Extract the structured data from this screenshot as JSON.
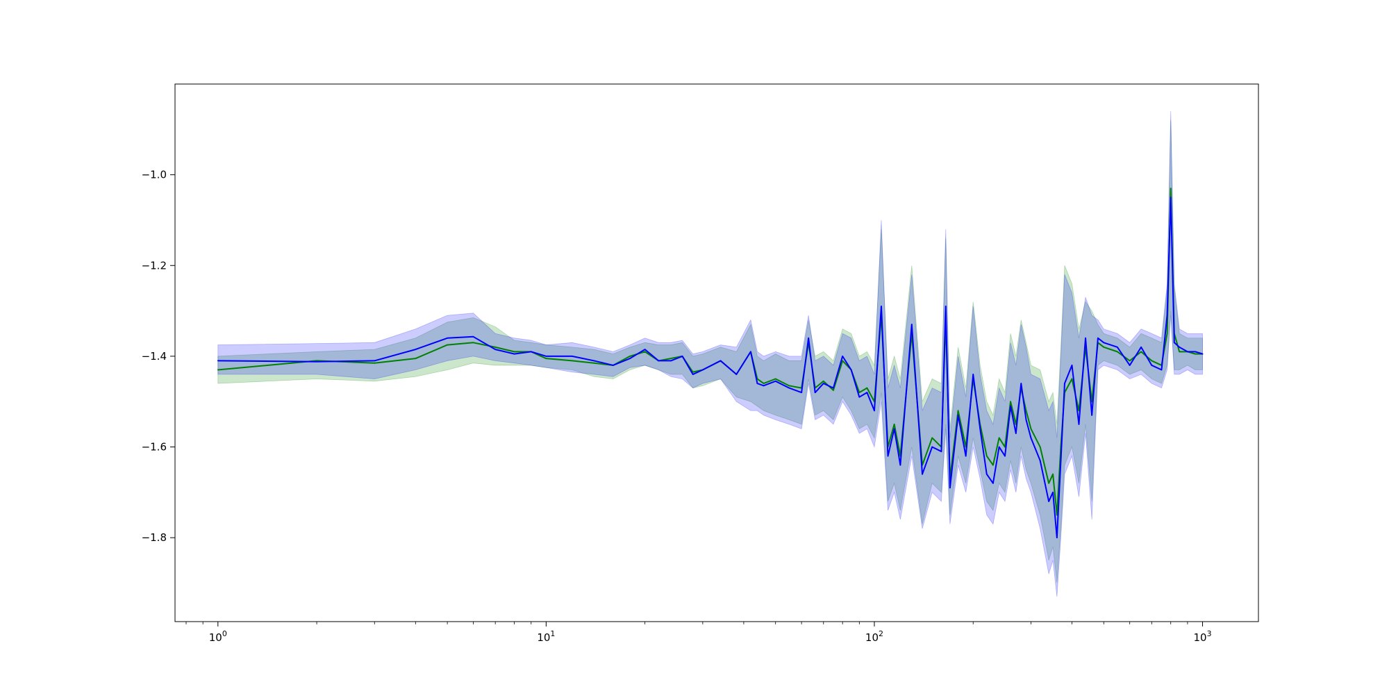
{
  "chart_data": {
    "type": "line",
    "title": "",
    "xlabel": "",
    "ylabel": "",
    "x_scale": "log",
    "xlim": [
      0.74,
      1480
    ],
    "ylim": [
      -1.985,
      -0.8
    ],
    "grid": false,
    "legend": "none",
    "x_ticks": [
      {
        "value": 1,
        "base": "10",
        "exp": "0"
      },
      {
        "value": 10,
        "base": "10",
        "exp": "1"
      },
      {
        "value": 100,
        "base": "10",
        "exp": "2"
      },
      {
        "value": 1000,
        "base": "10",
        "exp": "3"
      }
    ],
    "y_ticks": [
      {
        "value": -1.0,
        "label": "−1.0"
      },
      {
        "value": -1.2,
        "label": "−1.2"
      },
      {
        "value": -1.4,
        "label": "−1.4"
      },
      {
        "value": -1.6,
        "label": "−1.6"
      },
      {
        "value": -1.8,
        "label": "−1.8"
      }
    ],
    "series": [
      {
        "color": "#008000",
        "band_color": "#008000",
        "x": [
          1,
          2,
          3,
          4,
          5,
          6,
          7,
          8,
          9,
          10,
          12,
          14,
          16,
          18,
          20,
          22,
          24,
          26,
          28,
          30,
          34,
          38,
          42,
          44,
          46,
          50,
          55,
          60,
          63,
          66,
          70,
          75,
          80,
          85,
          90,
          95,
          100,
          105,
          110,
          115,
          120,
          130,
          140,
          150,
          160,
          165,
          170,
          180,
          190,
          200,
          210,
          220,
          230,
          240,
          250,
          260,
          270,
          280,
          290,
          300,
          320,
          340,
          350,
          360,
          370,
          380,
          400,
          420,
          440,
          460,
          480,
          500,
          550,
          600,
          650,
          700,
          750,
          780,
          800,
          820,
          850,
          900,
          950,
          1000
        ],
        "values": [
          -1.43,
          -1.41,
          -1.415,
          -1.405,
          -1.375,
          -1.37,
          -1.38,
          -1.39,
          -1.39,
          -1.405,
          -1.41,
          -1.415,
          -1.42,
          -1.4,
          -1.39,
          -1.41,
          -1.405,
          -1.4,
          -1.435,
          -1.43,
          -1.41,
          -1.44,
          -1.39,
          -1.45,
          -1.46,
          -1.45,
          -1.465,
          -1.47,
          -1.37,
          -1.47,
          -1.455,
          -1.475,
          -1.41,
          -1.43,
          -1.48,
          -1.47,
          -1.5,
          -1.31,
          -1.6,
          -1.55,
          -1.62,
          -1.35,
          -1.64,
          -1.58,
          -1.6,
          -1.32,
          -1.67,
          -1.52,
          -1.6,
          -1.45,
          -1.55,
          -1.62,
          -1.64,
          -1.58,
          -1.6,
          -1.5,
          -1.55,
          -1.47,
          -1.52,
          -1.56,
          -1.6,
          -1.68,
          -1.66,
          -1.75,
          -1.6,
          -1.48,
          -1.45,
          -1.52,
          -1.38,
          -1.5,
          -1.37,
          -1.38,
          -1.39,
          -1.41,
          -1.39,
          -1.41,
          -1.42,
          -1.35,
          -1.03,
          -1.35,
          -1.39,
          -1.39,
          -1.395,
          -1.395
        ],
        "lower": [
          -1.46,
          -1.45,
          -1.455,
          -1.445,
          -1.43,
          -1.415,
          -1.42,
          -1.42,
          -1.42,
          -1.425,
          -1.43,
          -1.445,
          -1.45,
          -1.43,
          -1.42,
          -1.43,
          -1.44,
          -1.44,
          -1.47,
          -1.465,
          -1.45,
          -1.49,
          -1.5,
          -1.51,
          -1.52,
          -1.53,
          -1.54,
          -1.55,
          -1.45,
          -1.53,
          -1.52,
          -1.54,
          -1.49,
          -1.52,
          -1.56,
          -1.55,
          -1.58,
          -1.48,
          -1.72,
          -1.68,
          -1.74,
          -1.6,
          -1.77,
          -1.68,
          -1.7,
          -1.55,
          -1.75,
          -1.62,
          -1.68,
          -1.58,
          -1.65,
          -1.72,
          -1.74,
          -1.68,
          -1.7,
          -1.63,
          -1.68,
          -1.6,
          -1.65,
          -1.68,
          -1.75,
          -1.85,
          -1.82,
          -1.9,
          -1.78,
          -1.64,
          -1.6,
          -1.68,
          -1.55,
          -1.72,
          -1.42,
          -1.41,
          -1.42,
          -1.44,
          -1.43,
          -1.45,
          -1.46,
          -1.42,
          -1.3,
          -1.43,
          -1.43,
          -1.42,
          -1.43,
          -1.43
        ],
        "upper": [
          -1.4,
          -1.39,
          -1.385,
          -1.36,
          -1.325,
          -1.315,
          -1.335,
          -1.365,
          -1.37,
          -1.375,
          -1.38,
          -1.385,
          -1.395,
          -1.38,
          -1.37,
          -1.375,
          -1.375,
          -1.37,
          -1.4,
          -1.395,
          -1.38,
          -1.39,
          -1.33,
          -1.4,
          -1.41,
          -1.395,
          -1.41,
          -1.41,
          -1.32,
          -1.4,
          -1.39,
          -1.41,
          -1.34,
          -1.35,
          -1.4,
          -1.39,
          -1.42,
          -1.12,
          -1.45,
          -1.4,
          -1.45,
          -1.2,
          -1.5,
          -1.45,
          -1.46,
          -1.14,
          -1.56,
          -1.38,
          -1.47,
          -1.28,
          -1.42,
          -1.5,
          -1.53,
          -1.45,
          -1.48,
          -1.35,
          -1.4,
          -1.32,
          -1.37,
          -1.42,
          -1.43,
          -1.5,
          -1.48,
          -1.55,
          -1.38,
          -1.2,
          -1.24,
          -1.34,
          -1.28,
          -1.3,
          -1.33,
          -1.35,
          -1.36,
          -1.38,
          -1.35,
          -1.36,
          -1.37,
          -1.25,
          -0.88,
          -1.25,
          -1.35,
          -1.36,
          -1.36,
          -1.36
        ]
      },
      {
        "color": "#0000ff",
        "band_color": "#0000ff",
        "x": [
          1,
          2,
          3,
          4,
          5,
          6,
          7,
          8,
          9,
          10,
          12,
          14,
          16,
          18,
          20,
          22,
          24,
          26,
          28,
          30,
          34,
          38,
          42,
          44,
          46,
          50,
          55,
          60,
          63,
          66,
          70,
          75,
          80,
          85,
          90,
          95,
          100,
          105,
          110,
          115,
          120,
          130,
          140,
          150,
          160,
          165,
          170,
          180,
          190,
          200,
          210,
          220,
          230,
          240,
          250,
          260,
          270,
          280,
          290,
          300,
          320,
          340,
          350,
          360,
          370,
          380,
          400,
          420,
          440,
          460,
          480,
          500,
          550,
          600,
          650,
          700,
          750,
          780,
          800,
          820,
          850,
          900,
          950,
          1000
        ],
        "values": [
          -1.41,
          -1.412,
          -1.41,
          -1.385,
          -1.36,
          -1.357,
          -1.385,
          -1.395,
          -1.39,
          -1.4,
          -1.4,
          -1.41,
          -1.42,
          -1.405,
          -1.385,
          -1.41,
          -1.41,
          -1.4,
          -1.44,
          -1.43,
          -1.41,
          -1.44,
          -1.39,
          -1.46,
          -1.465,
          -1.455,
          -1.47,
          -1.48,
          -1.36,
          -1.48,
          -1.46,
          -1.47,
          -1.4,
          -1.43,
          -1.49,
          -1.48,
          -1.52,
          -1.29,
          -1.62,
          -1.56,
          -1.64,
          -1.33,
          -1.66,
          -1.6,
          -1.61,
          -1.29,
          -1.69,
          -1.53,
          -1.62,
          -1.44,
          -1.56,
          -1.66,
          -1.68,
          -1.6,
          -1.62,
          -1.51,
          -1.57,
          -1.46,
          -1.54,
          -1.58,
          -1.63,
          -1.72,
          -1.7,
          -1.8,
          -1.63,
          -1.46,
          -1.42,
          -1.55,
          -1.36,
          -1.53,
          -1.36,
          -1.37,
          -1.38,
          -1.42,
          -1.38,
          -1.42,
          -1.43,
          -1.31,
          -1.05,
          -1.37,
          -1.38,
          -1.39,
          -1.39,
          -1.395
        ],
        "lower": [
          -1.44,
          -1.44,
          -1.45,
          -1.43,
          -1.41,
          -1.4,
          -1.41,
          -1.415,
          -1.42,
          -1.425,
          -1.435,
          -1.44,
          -1.445,
          -1.425,
          -1.42,
          -1.43,
          -1.445,
          -1.45,
          -1.47,
          -1.46,
          -1.45,
          -1.5,
          -1.52,
          -1.52,
          -1.53,
          -1.54,
          -1.55,
          -1.56,
          -1.46,
          -1.54,
          -1.53,
          -1.55,
          -1.5,
          -1.53,
          -1.57,
          -1.56,
          -1.6,
          -1.5,
          -1.74,
          -1.7,
          -1.76,
          -1.62,
          -1.78,
          -1.7,
          -1.72,
          -1.56,
          -1.77,
          -1.64,
          -1.7,
          -1.6,
          -1.67,
          -1.75,
          -1.77,
          -1.7,
          -1.72,
          -1.65,
          -1.7,
          -1.62,
          -1.67,
          -1.7,
          -1.78,
          -1.88,
          -1.85,
          -1.93,
          -1.8,
          -1.66,
          -1.62,
          -1.71,
          -1.57,
          -1.76,
          -1.43,
          -1.42,
          -1.43,
          -1.45,
          -1.44,
          -1.46,
          -1.47,
          -1.43,
          -1.31,
          -1.44,
          -1.44,
          -1.43,
          -1.44,
          -1.44
        ],
        "upper": [
          -1.375,
          -1.372,
          -1.37,
          -1.34,
          -1.31,
          -1.305,
          -1.35,
          -1.36,
          -1.365,
          -1.375,
          -1.37,
          -1.38,
          -1.39,
          -1.375,
          -1.36,
          -1.37,
          -1.37,
          -1.365,
          -1.395,
          -1.39,
          -1.375,
          -1.38,
          -1.32,
          -1.39,
          -1.4,
          -1.39,
          -1.4,
          -1.4,
          -1.31,
          -1.41,
          -1.4,
          -1.42,
          -1.35,
          -1.36,
          -1.41,
          -1.4,
          -1.44,
          -1.1,
          -1.47,
          -1.42,
          -1.47,
          -1.22,
          -1.52,
          -1.47,
          -1.48,
          -1.12,
          -1.58,
          -1.4,
          -1.49,
          -1.29,
          -1.44,
          -1.52,
          -1.55,
          -1.47,
          -1.5,
          -1.37,
          -1.42,
          -1.33,
          -1.38,
          -1.44,
          -1.45,
          -1.52,
          -1.5,
          -1.58,
          -1.4,
          -1.22,
          -1.26,
          -1.36,
          -1.27,
          -1.31,
          -1.32,
          -1.34,
          -1.35,
          -1.37,
          -1.34,
          -1.35,
          -1.36,
          -1.24,
          -0.86,
          -1.24,
          -1.34,
          -1.35,
          -1.35,
          -1.35
        ]
      }
    ]
  }
}
